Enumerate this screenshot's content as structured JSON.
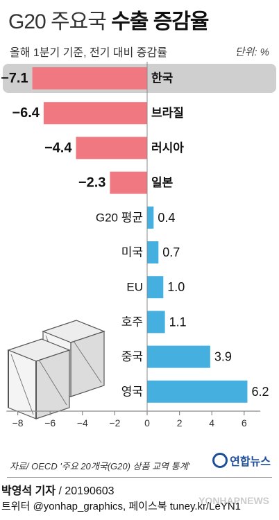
{
  "header": {
    "title_part1": "G20 주요국",
    "title_part2": "수출 증감율",
    "subtitle": "올해 1분기 기준, 전기 대비 증감률",
    "unit": "단위: %"
  },
  "chart_data": {
    "type": "bar",
    "orientation": "horizontal",
    "categories": [
      "한국",
      "브라질",
      "러시아",
      "일본",
      "G20 평균",
      "미국",
      "EU",
      "호주",
      "중국",
      "영국"
    ],
    "values": [
      -7.1,
      -6.4,
      -4.4,
      -2.3,
      0.4,
      0.7,
      1.0,
      1.1,
      3.9,
      6.2
    ],
    "value_labels": [
      "−7.1",
      "−6.4",
      "−4.4",
      "−2.3",
      "0.4",
      "0.7",
      "1.0",
      "1.1",
      "3.9",
      "6.2"
    ],
    "highlight_category": "한국",
    "xlim": [
      -8.7,
      7
    ],
    "xticks": [
      -8,
      -6,
      -4,
      -2,
      0,
      2,
      4,
      6
    ],
    "xtick_labels": [
      "−8",
      "−6",
      "−4",
      "−2",
      "0",
      "2",
      "4",
      "6"
    ],
    "colors": {
      "negative": "#f07880",
      "positive": "#45b0df",
      "highlight_row": "#cfcfcf",
      "axis": "#888888"
    },
    "grid": false
  },
  "footer": {
    "source": "자료/ OECD '주요 20개국(G20) 상품 교역 통계'",
    "agency": "연합뉴스",
    "reporter_name": "박영석 기자",
    "reporter_date": " / 20190603",
    "social": "트위터 @yonhap_graphics, 페이스북 tuney.kr/LeYN1",
    "watermark": "YONHAPNEWS"
  },
  "illustration": {
    "icon": "wooden-crates-icon"
  }
}
